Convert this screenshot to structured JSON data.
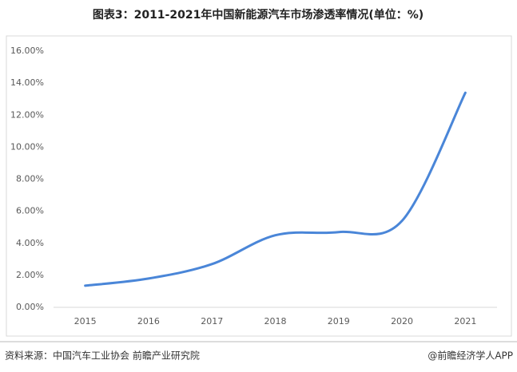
{
  "chart_data": {
    "type": "line",
    "title": "图表3：2011-2021年中国新能源汽车市场渗透率情况(单位：%)",
    "categories": [
      "2015",
      "2016",
      "2017",
      "2018",
      "2019",
      "2020",
      "2021"
    ],
    "values": [
      1.35,
      1.8,
      2.7,
      4.5,
      4.7,
      5.4,
      13.4
    ],
    "color": "#4a86d8",
    "ylim": [
      0,
      16
    ],
    "yticks": [
      {
        "value": 0,
        "label": "0.00%"
      },
      {
        "value": 2,
        "label": "2.00%"
      },
      {
        "value": 4,
        "label": "4.00%"
      },
      {
        "value": 6,
        "label": "6.00%"
      },
      {
        "value": 8,
        "label": "8.00%"
      },
      {
        "value": 10,
        "label": "10.00%"
      },
      {
        "value": 12,
        "label": "12.00%"
      },
      {
        "value": 14,
        "label": "14.00%"
      },
      {
        "value": 16,
        "label": "16.00%"
      }
    ],
    "smooth": true,
    "source": "资料来源：中国汽车工业协会 前瞻产业研究院",
    "credit": "@前瞻经济学人APP"
  }
}
